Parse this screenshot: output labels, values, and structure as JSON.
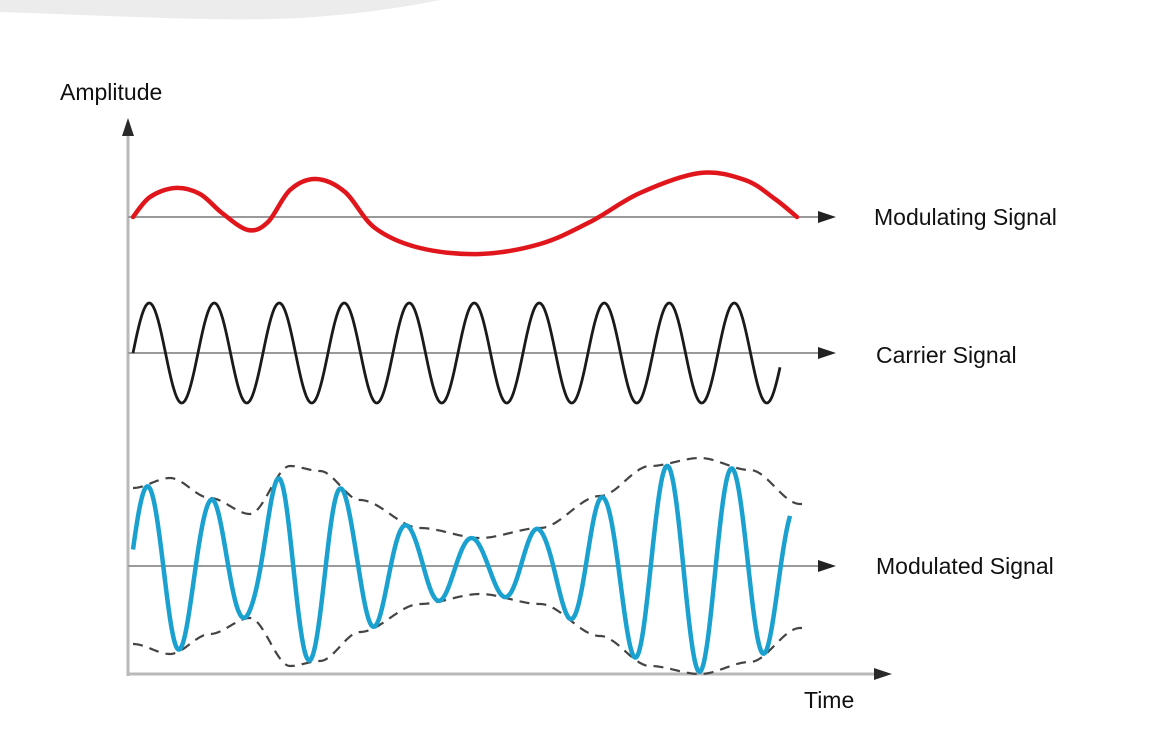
{
  "axes": {
    "y_label": "Amplitude",
    "x_label": "Time"
  },
  "signals": {
    "modulating": {
      "label": "Modulating Signal",
      "color": "#e0161c"
    },
    "carrier": {
      "label": "Carrier Signal",
      "color": "#1a1a1a",
      "visible_cycles": 10
    },
    "modulated": {
      "label": "Modulated Signal",
      "color": "#1ba1cf",
      "envelope_color": "#444444",
      "envelope_style": "dashed"
    }
  }
}
